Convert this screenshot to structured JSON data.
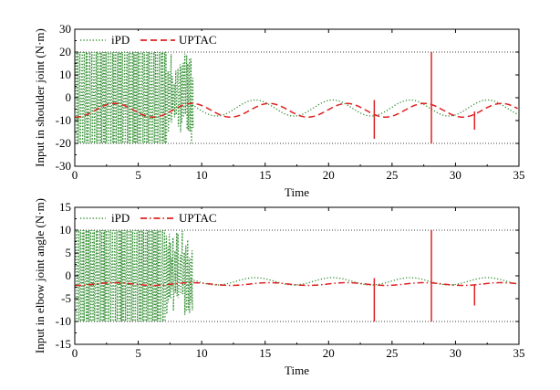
{
  "chart_data": [
    {
      "type": "line",
      "title": "",
      "xlabel": "Time",
      "ylabel": "Input in shoulder joint (N·m)",
      "xlim": [
        0,
        35
      ],
      "ylim": [
        -30,
        30
      ],
      "xticks": [
        0,
        5,
        10,
        15,
        20,
        25,
        30,
        35
      ],
      "yticks": [
        -30,
        -20,
        -10,
        0,
        10,
        20,
        30
      ],
      "saturation_limits": [
        -20,
        20
      ],
      "legend_position": "top-left",
      "series": [
        {
          "name": "iPD",
          "color": "#2e8b2e",
          "style": "dotted",
          "description_values": {
            "chattering_interval": [
              0,
              9.2
            ],
            "chattering_range": [
              -20,
              20
            ],
            "sine_offset": -4.5,
            "sine_amplitude": 3.5,
            "sine_period": 6.1
          }
        },
        {
          "name": "UPTAC",
          "color": "#dd2222",
          "style": "dashed",
          "description_values": {
            "sine_offset": -5.5,
            "sine_amplitude": 3,
            "sine_period": 6.1,
            "spikes": [
              {
                "t": 23.6,
                "min": -18,
                "max": -1
              },
              {
                "t": 28.1,
                "min": -20,
                "max": 20
              },
              {
                "t": 31.5,
                "min": -14,
                "max": -6
              }
            ]
          }
        }
      ]
    },
    {
      "type": "line",
      "title": "",
      "xlabel": "Time",
      "ylabel": "Input in elbow joint angle (N·m)",
      "xlim": [
        0,
        35
      ],
      "ylim": [
        -15,
        15
      ],
      "xticks": [
        0,
        5,
        10,
        15,
        20,
        25,
        30,
        35
      ],
      "yticks": [
        -15,
        -10,
        -5,
        0,
        5,
        10,
        15
      ],
      "saturation_limits": [
        -10,
        10
      ],
      "legend_position": "top-left",
      "series": [
        {
          "name": "iPD",
          "color": "#2e8b2e",
          "style": "dotted",
          "description_values": {
            "chattering_interval": [
              0,
              9.2
            ],
            "chattering_range": [
              -10,
              10
            ],
            "sine_offset": -1.2,
            "sine_amplitude": 0.8,
            "sine_period": 6.1
          }
        },
        {
          "name": "UPTAC",
          "color": "#dd2222",
          "style": "dashdot",
          "description_values": {
            "sine_offset": -1.8,
            "sine_amplitude": 0.3,
            "sine_period": 6.1,
            "spikes": [
              {
                "t": 23.6,
                "min": -10,
                "max": -0.5
              },
              {
                "t": 28.1,
                "min": -10,
                "max": 10
              },
              {
                "t": 31.5,
                "min": -6.5,
                "max": -2
              }
            ]
          }
        }
      ]
    }
  ]
}
